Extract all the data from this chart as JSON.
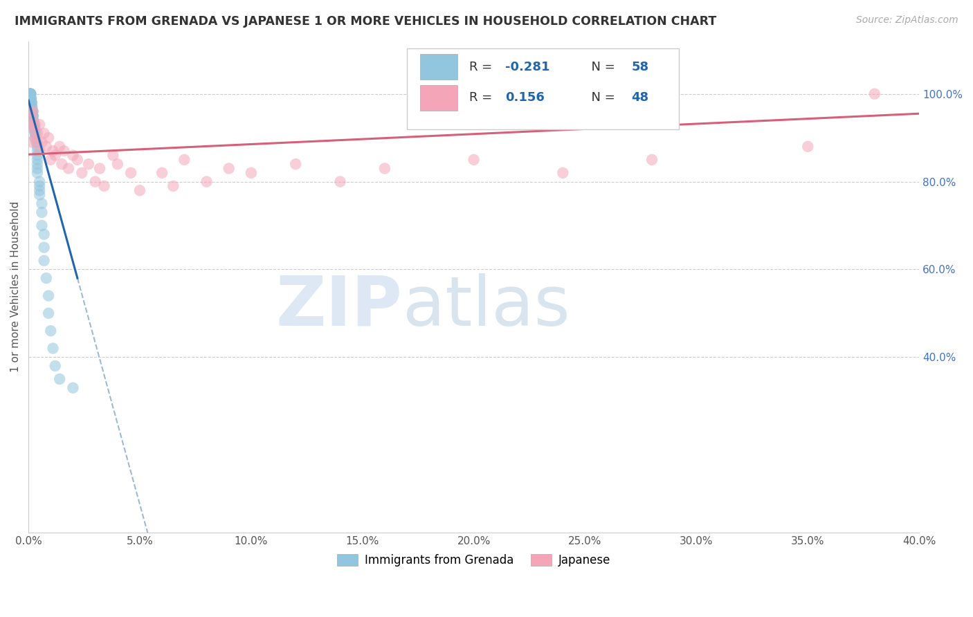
{
  "title": "IMMIGRANTS FROM GRENADA VS JAPANESE 1 OR MORE VEHICLES IN HOUSEHOLD CORRELATION CHART",
  "source": "Source: ZipAtlas.com",
  "ylabel": "1 or more Vehicles in Household",
  "watermark_zip": "ZIP",
  "watermark_atlas": "atlas",
  "blue_color": "#92c5de",
  "pink_color": "#f4a6b8",
  "blue_line_color": "#2166ac",
  "pink_line_color": "#d6607a",
  "right_tick_color": "#4472c4",
  "xmin": 0.0,
  "xmax": 0.4,
  "ymin": 0.0,
  "ymax": 1.12,
  "grenada_x": [
    0.0003,
    0.0005,
    0.0005,
    0.0007,
    0.0008,
    0.0009,
    0.001,
    0.001,
    0.001,
    0.001,
    0.0012,
    0.0012,
    0.0013,
    0.0014,
    0.0015,
    0.0015,
    0.0016,
    0.0017,
    0.0018,
    0.002,
    0.002,
    0.002,
    0.002,
    0.002,
    0.0022,
    0.0023,
    0.0025,
    0.0025,
    0.003,
    0.003,
    0.003,
    0.003,
    0.0035,
    0.004,
    0.004,
    0.004,
    0.004,
    0.004,
    0.004,
    0.004,
    0.005,
    0.005,
    0.005,
    0.005,
    0.006,
    0.006,
    0.006,
    0.007,
    0.007,
    0.007,
    0.008,
    0.009,
    0.009,
    0.01,
    0.011,
    0.012,
    0.014,
    0.02
  ],
  "grenada_y": [
    1.0,
    1.0,
    1.0,
    1.0,
    1.0,
    1.0,
    1.0,
    1.0,
    1.0,
    0.99,
    0.99,
    0.99,
    0.98,
    0.98,
    0.98,
    0.97,
    0.97,
    0.96,
    0.96,
    0.96,
    0.95,
    0.95,
    0.95,
    0.94,
    0.94,
    0.93,
    0.93,
    0.92,
    0.92,
    0.91,
    0.91,
    0.9,
    0.89,
    0.88,
    0.87,
    0.86,
    0.85,
    0.84,
    0.83,
    0.82,
    0.8,
    0.79,
    0.78,
    0.77,
    0.75,
    0.73,
    0.7,
    0.68,
    0.65,
    0.62,
    0.58,
    0.54,
    0.5,
    0.46,
    0.42,
    0.38,
    0.35,
    0.33
  ],
  "japanese_x": [
    0.001,
    0.0012,
    0.0015,
    0.002,
    0.002,
    0.0022,
    0.003,
    0.003,
    0.004,
    0.004,
    0.005,
    0.005,
    0.006,
    0.007,
    0.008,
    0.009,
    0.01,
    0.011,
    0.012,
    0.014,
    0.015,
    0.016,
    0.018,
    0.02,
    0.022,
    0.024,
    0.027,
    0.03,
    0.032,
    0.034,
    0.038,
    0.04,
    0.046,
    0.05,
    0.06,
    0.065,
    0.07,
    0.08,
    0.09,
    0.1,
    0.12,
    0.14,
    0.16,
    0.2,
    0.24,
    0.28,
    0.35,
    0.38
  ],
  "japanese_y": [
    0.93,
    0.96,
    0.89,
    0.94,
    0.96,
    0.92,
    0.9,
    0.93,
    0.89,
    0.91,
    0.87,
    0.93,
    0.89,
    0.91,
    0.88,
    0.9,
    0.85,
    0.87,
    0.86,
    0.88,
    0.84,
    0.87,
    0.83,
    0.86,
    0.85,
    0.82,
    0.84,
    0.8,
    0.83,
    0.79,
    0.86,
    0.84,
    0.82,
    0.78,
    0.82,
    0.79,
    0.85,
    0.8,
    0.83,
    0.82,
    0.84,
    0.8,
    0.83,
    0.85,
    0.82,
    0.85,
    0.88,
    1.0
  ],
  "grenada_line_x0": 0.0,
  "grenada_line_y0": 0.985,
  "grenada_line_x1": 0.022,
  "grenada_line_y1": 0.58,
  "grenada_line_solid_end_x": 0.022,
  "grenada_line_dashed_end_x": 0.32,
  "japanese_line_x0": 0.0,
  "japanese_line_y0": 0.862,
  "japanese_line_x1": 0.4,
  "japanese_line_y1": 0.955,
  "right_yticks": [
    0.4,
    0.6,
    0.8,
    1.0
  ],
  "xticks": [
    0.0,
    0.05,
    0.1,
    0.15,
    0.2,
    0.25,
    0.3,
    0.35,
    0.4
  ]
}
